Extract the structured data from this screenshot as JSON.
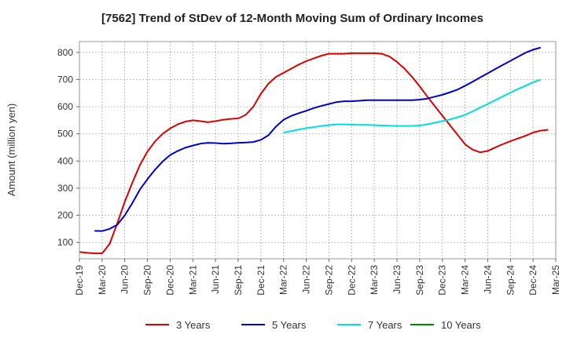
{
  "chart_data": {
    "type": "line",
    "title": "[7562]  Trend of StDev of 12-Month Moving Sum of Ordinary Incomes",
    "ylabel": "Amount (million yen)",
    "xlabel": "",
    "ylim": [
      40,
      840
    ],
    "yticks": [
      100,
      200,
      300,
      400,
      500,
      600,
      700,
      800
    ],
    "grid": true,
    "legend_position": "bottom",
    "x_tick_labels": [
      "Dec-19",
      "Mar-20",
      "Jun-20",
      "Sep-20",
      "Dec-20",
      "Mar-21",
      "Jun-21",
      "Sep-21",
      "Dec-21",
      "Mar-22",
      "Jun-22",
      "Sep-22",
      "Dec-22",
      "Mar-23",
      "Jun-23",
      "Sep-23",
      "Dec-23",
      "Mar-24",
      "Jun-24",
      "Sep-24",
      "Dec-24",
      "Mar-25"
    ],
    "series": [
      {
        "name": "3 Years",
        "color": "#dd0000",
        "start_index": 0,
        "values": [
          65,
          62,
          60,
          60,
          95,
          170,
          250,
          320,
          385,
          435,
          472,
          500,
          520,
          535,
          545,
          550,
          547,
          543,
          547,
          552,
          555,
          557,
          570,
          600,
          648,
          685,
          710,
          725,
          740,
          755,
          768,
          778,
          788,
          795,
          795,
          795,
          797,
          797,
          797,
          797,
          795,
          785,
          765,
          740,
          710,
          675,
          638,
          602,
          567,
          532,
          497,
          462,
          442,
          432,
          437,
          450,
          462,
          473,
          483,
          493,
          505,
          512,
          515
        ]
      },
      {
        "name": "5 Years",
        "color": "#0000cc",
        "start_index": 2,
        "values": [
          143,
          142,
          150,
          165,
          200,
          245,
          295,
          333,
          368,
          398,
          422,
          437,
          449,
          457,
          464,
          467,
          466,
          464,
          465,
          467,
          468,
          470,
          478,
          495,
          527,
          552,
          566,
          576,
          585,
          595,
          603,
          610,
          617,
          620,
          620,
          622,
          624,
          624,
          624,
          624,
          624,
          624,
          624,
          626,
          630,
          637,
          644,
          653,
          663,
          677,
          692,
          708,
          723,
          739,
          754,
          769,
          784,
          799,
          810,
          818
        ]
      },
      {
        "name": "7 Years",
        "color": "#00dddd",
        "start_index": 27,
        "values": [
          505,
          510,
          516,
          521,
          525,
          529,
          532,
          535,
          535,
          534,
          533,
          533,
          532,
          531,
          530,
          529,
          529,
          529,
          531,
          535,
          541,
          547,
          553,
          561,
          570,
          583,
          597,
          610,
          624,
          638,
          652,
          665,
          677,
          690,
          700
        ]
      },
      {
        "name": "10 Years",
        "color": "#008800",
        "start_index": 0,
        "values": []
      }
    ]
  }
}
